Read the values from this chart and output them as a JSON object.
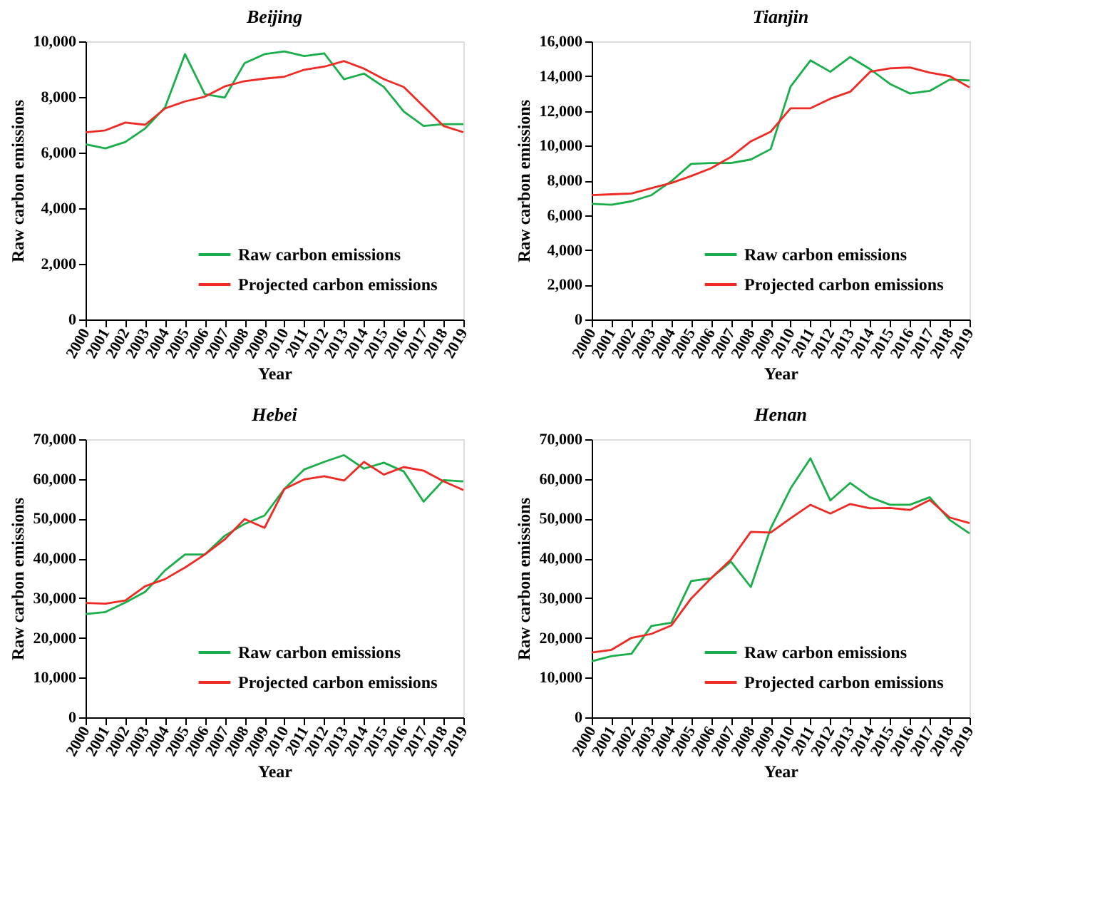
{
  "chart_data": [
    {
      "type": "line",
      "title": "Beijing",
      "xlabel": "Year",
      "ylabel": "Raw carbon emissions",
      "categories": [
        "2000",
        "2001",
        "2002",
        "2003",
        "2004",
        "2005",
        "2006",
        "2007",
        "2008",
        "2009",
        "2010",
        "2011",
        "2012",
        "2013",
        "2014",
        "2015",
        "2016",
        "2017",
        "2018",
        "2019"
      ],
      "ylim": [
        0,
        10000
      ],
      "yticks": [
        0,
        {
          "value": 2000,
          "label": "2,000"
        },
        {
          "value": 4000,
          "label": "4,000"
        },
        {
          "value": 6000,
          "label": "6,000"
        },
        {
          "value": 8000,
          "label": "8,000"
        },
        {
          "value": 10000,
          "label": "10,000"
        }
      ],
      "grid": false,
      "legend": "bottom right",
      "series": [
        {
          "name": "Raw carbon emissions",
          "color": "#1aae4a",
          "values": [
            6300,
            6150,
            6380,
            6870,
            7630,
            9540,
            8100,
            7980,
            9220,
            9540,
            9640,
            9470,
            9570,
            8640,
            8840,
            8360,
            7480,
            6960,
            7020,
            7020
          ]
        },
        {
          "name": "Projected carbon emissions",
          "color": "#ee2a24",
          "values": [
            6730,
            6800,
            7080,
            7000,
            7590,
            7840,
            8010,
            8380,
            8570,
            8660,
            8730,
            8980,
            9090,
            9290,
            9020,
            8640,
            8360,
            7660,
            6960,
            6730
          ]
        }
      ]
    },
    {
      "type": "line",
      "title": "Tianjin",
      "xlabel": "Year",
      "ylabel": "Raw carbon emissions",
      "categories": [
        "2000",
        "2001",
        "2002",
        "2003",
        "2004",
        "2005",
        "2006",
        "2007",
        "2008",
        "2009",
        "2010",
        "2011",
        "2012",
        "2013",
        "2014",
        "2015",
        "2016",
        "2017",
        "2018",
        "2019"
      ],
      "ylim": [
        0,
        16000
      ],
      "yticks": [
        0,
        {
          "value": 2000,
          "label": "2,000"
        },
        {
          "value": 4000,
          "label": "4,000"
        },
        {
          "value": 6000,
          "label": "6,000"
        },
        {
          "value": 8000,
          "label": "8,000"
        },
        {
          "value": 10000,
          "label": "10,000"
        },
        {
          "value": 12000,
          "label": "12,000"
        },
        {
          "value": 14000,
          "label": "14,000"
        },
        {
          "value": 16000,
          "label": "16,000"
        }
      ],
      "grid": false,
      "legend": "bottom right",
      "series": [
        {
          "name": "Raw carbon emissions",
          "color": "#1aae4a",
          "values": [
            6650,
            6600,
            6800,
            7150,
            7950,
            8950,
            9000,
            9000,
            9200,
            9800,
            13400,
            14900,
            14250,
            15100,
            14400,
            13550,
            13000,
            13150,
            13800,
            13750
          ]
        },
        {
          "name": "Projected carbon emissions",
          "color": "#ee2a24",
          "values": [
            7150,
            7200,
            7250,
            7550,
            7850,
            8250,
            8700,
            9350,
            10250,
            10800,
            12150,
            12150,
            12700,
            13100,
            14250,
            14450,
            14500,
            14200,
            14000,
            13350
          ]
        }
      ]
    },
    {
      "type": "line",
      "title": "Hebei",
      "xlabel": "Year",
      "ylabel": "Raw carbon emissions",
      "categories": [
        "2000",
        "2001",
        "2002",
        "2003",
        "2004",
        "2005",
        "2006",
        "2007",
        "2008",
        "2009",
        "2010",
        "2011",
        "2012",
        "2013",
        "2014",
        "2015",
        "2016",
        "2017",
        "2018",
        "2019"
      ],
      "ylim": [
        0,
        70000
      ],
      "yticks": [
        0,
        {
          "value": 10000,
          "label": "10,000"
        },
        {
          "value": 20000,
          "label": "20,000"
        },
        {
          "value": 30000,
          "label": "30,000"
        },
        {
          "value": 40000,
          "label": "40,000"
        },
        {
          "value": 50000,
          "label": "50,000"
        },
        {
          "value": 60000,
          "label": "60,000"
        },
        {
          "value": 70000,
          "label": "70,000"
        }
      ],
      "grid": false,
      "legend": "bottom right",
      "series": [
        {
          "name": "Raw carbon emissions",
          "color": "#1aae4a",
          "values": [
            26000,
            26500,
            28900,
            31600,
            37000,
            41000,
            41000,
            45700,
            48700,
            50800,
            57500,
            62400,
            64300,
            66000,
            62600,
            64100,
            61900,
            54300,
            59700,
            59400
          ]
        },
        {
          "name": "Projected carbon emissions",
          "color": "#ee2a24",
          "values": [
            28800,
            28600,
            29400,
            33000,
            34800,
            37700,
            41000,
            44800,
            49900,
            47700,
            57500,
            59900,
            60700,
            59600,
            64300,
            61100,
            63000,
            62100,
            59400,
            57200
          ]
        }
      ]
    },
    {
      "type": "line",
      "title": "Henan",
      "xlabel": "Year",
      "ylabel": "Raw carbon emissions",
      "categories": [
        "2000",
        "2001",
        "2002",
        "2003",
        "2004",
        "2005",
        "2006",
        "2007",
        "2008",
        "2009",
        "2010",
        "2011",
        "2012",
        "2013",
        "2014",
        "2015",
        "2016",
        "2017",
        "2018",
        "2019"
      ],
      "ylim": [
        0,
        70000
      ],
      "yticks": [
        0,
        {
          "value": 10000,
          "label": "10,000"
        },
        {
          "value": 20000,
          "label": "20,000"
        },
        {
          "value": 30000,
          "label": "30,000"
        },
        {
          "value": 40000,
          "label": "40,000"
        },
        {
          "value": 50000,
          "label": "50,000"
        },
        {
          "value": 60000,
          "label": "60,000"
        },
        {
          "value": 70000,
          "label": "70,000"
        }
      ],
      "grid": false,
      "legend": "bottom right",
      "series": [
        {
          "name": "Raw carbon emissions",
          "color": "#1aae4a",
          "values": [
            14100,
            15400,
            16000,
            23000,
            23800,
            34300,
            35000,
            39200,
            32800,
            47600,
            57600,
            65200,
            54600,
            59000,
            55400,
            53500,
            53500,
            55400,
            49700,
            46300
          ]
        },
        {
          "name": "Projected carbon emissions",
          "color": "#ee2a24",
          "values": [
            16300,
            17000,
            20000,
            21000,
            23100,
            29900,
            35000,
            39700,
            46700,
            46500,
            50100,
            53500,
            51300,
            53700,
            52600,
            52700,
            52200,
            54700,
            50300,
            48900
          ]
        }
      ]
    }
  ]
}
